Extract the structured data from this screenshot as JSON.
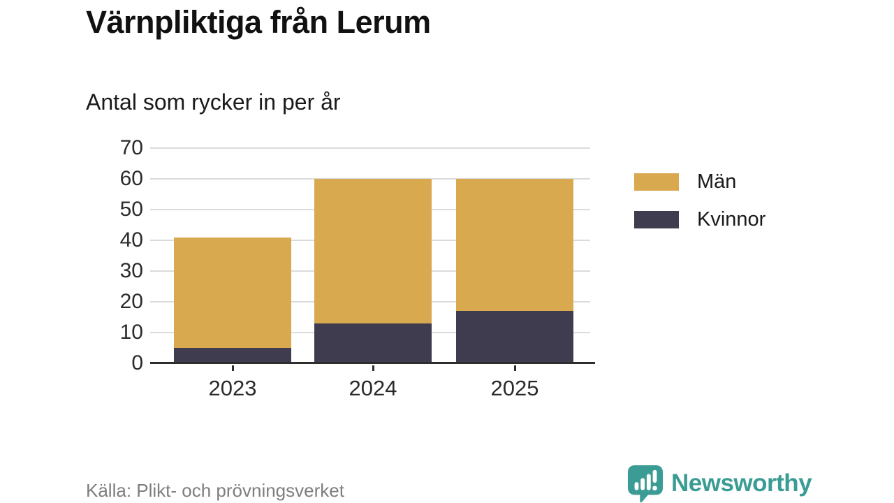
{
  "header": {
    "title": "Värnpliktiga från Lerum",
    "subtitle": "Antal som rycker in per år"
  },
  "chart_data": {
    "type": "bar",
    "stacked": true,
    "title": "Värnpliktiga från Lerum",
    "subtitle": "Antal som rycker in per år",
    "categories": [
      "2023",
      "2024",
      "2025"
    ],
    "series": [
      {
        "name": "Män",
        "color": "#D9A950",
        "values": [
          36,
          47,
          43
        ]
      },
      {
        "name": "Kvinnor",
        "color": "#3E3C4E",
        "values": [
          5,
          13,
          17
        ]
      }
    ],
    "stack_order_bottom_to_top": [
      "Kvinnor",
      "Män"
    ],
    "stacked_totals": [
      41,
      60,
      60
    ],
    "ylabel": "",
    "xlabel": "",
    "ylim": [
      0,
      70
    ],
    "yticks": [
      0,
      10,
      20,
      30,
      40,
      50,
      60,
      70
    ],
    "grid": true,
    "gridline_color": "#DBDBDB",
    "axis_color": "#2E2E2E",
    "legend_position": "right"
  },
  "footer": {
    "source": "Källa: Plikt- och prövningsverket",
    "brand": {
      "name": "Newsworthy",
      "color": "#3A9C94",
      "icon": "newsworthy-chart-bubble-icon"
    }
  }
}
